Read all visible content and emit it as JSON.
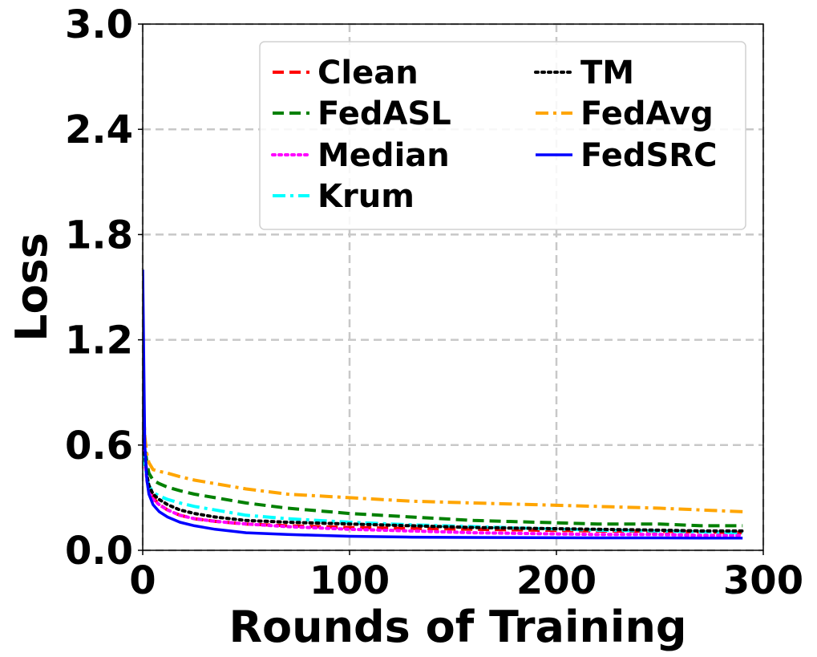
{
  "chart_data": {
    "type": "line",
    "xlabel": "Rounds of Training",
    "ylabel": "Loss",
    "xlim": [
      0,
      300
    ],
    "ylim": [
      0,
      3.0
    ],
    "x_ticks": [
      "0",
      "100",
      "200",
      "300"
    ],
    "y_ticks": [
      "0.0",
      "0.6",
      "1.2",
      "1.8",
      "2.4",
      "3.0"
    ],
    "grid": true,
    "legend_position": "top-right",
    "x": [
      0,
      1,
      2,
      3,
      5,
      8,
      12,
      18,
      25,
      35,
      50,
      70,
      100,
      130,
      160,
      190,
      220,
      250,
      270,
      290
    ],
    "series": [
      {
        "name": "Clean",
        "color": "#ff0000",
        "style": "dashed",
        "values": [
          0.9,
          0.55,
          0.42,
          0.36,
          0.3,
          0.26,
          0.23,
          0.2,
          0.18,
          0.165,
          0.15,
          0.14,
          0.13,
          0.125,
          0.12,
          0.115,
          0.11,
          0.108,
          0.105,
          0.1
        ]
      },
      {
        "name": "FedASL",
        "color": "#008000",
        "style": "dashed",
        "values": [
          0.85,
          0.6,
          0.5,
          0.44,
          0.4,
          0.38,
          0.36,
          0.34,
          0.32,
          0.3,
          0.27,
          0.24,
          0.21,
          0.19,
          0.17,
          0.16,
          0.15,
          0.15,
          0.14,
          0.14
        ]
      },
      {
        "name": "Median",
        "color": "#ff00ff",
        "style": "dotted",
        "values": [
          0.8,
          0.52,
          0.4,
          0.34,
          0.29,
          0.26,
          0.23,
          0.2,
          0.18,
          0.165,
          0.15,
          0.135,
          0.12,
          0.11,
          0.1,
          0.095,
          0.09,
          0.09,
          0.085,
          0.085
        ]
      },
      {
        "name": "Krum",
        "color": "#00ffff",
        "style": "dashdot",
        "values": [
          0.7,
          0.5,
          0.42,
          0.37,
          0.33,
          0.31,
          0.29,
          0.27,
          0.25,
          0.23,
          0.2,
          0.18,
          0.16,
          0.145,
          0.135,
          0.125,
          0.115,
          0.11,
          0.105,
          0.1
        ]
      },
      {
        "name": "TM",
        "color": "#000000",
        "style": "dotted",
        "values": [
          0.85,
          0.55,
          0.43,
          0.37,
          0.32,
          0.29,
          0.26,
          0.23,
          0.21,
          0.19,
          0.17,
          0.16,
          0.15,
          0.14,
          0.13,
          0.125,
          0.12,
          0.115,
          0.11,
          0.11
        ]
      },
      {
        "name": "FedAvg",
        "color": "#ffa500",
        "style": "dashdot",
        "values": [
          0.95,
          0.65,
          0.55,
          0.5,
          0.46,
          0.45,
          0.44,
          0.42,
          0.4,
          0.38,
          0.35,
          0.32,
          0.3,
          0.28,
          0.27,
          0.26,
          0.25,
          0.24,
          0.23,
          0.22
        ]
      },
      {
        "name": "FedSRC",
        "color": "#0000ff",
        "style": "solid",
        "values": [
          1.6,
          0.6,
          0.4,
          0.32,
          0.26,
          0.22,
          0.19,
          0.16,
          0.14,
          0.12,
          0.1,
          0.09,
          0.08,
          0.075,
          0.073,
          0.072,
          0.071,
          0.071,
          0.07,
          0.07
        ]
      }
    ]
  }
}
